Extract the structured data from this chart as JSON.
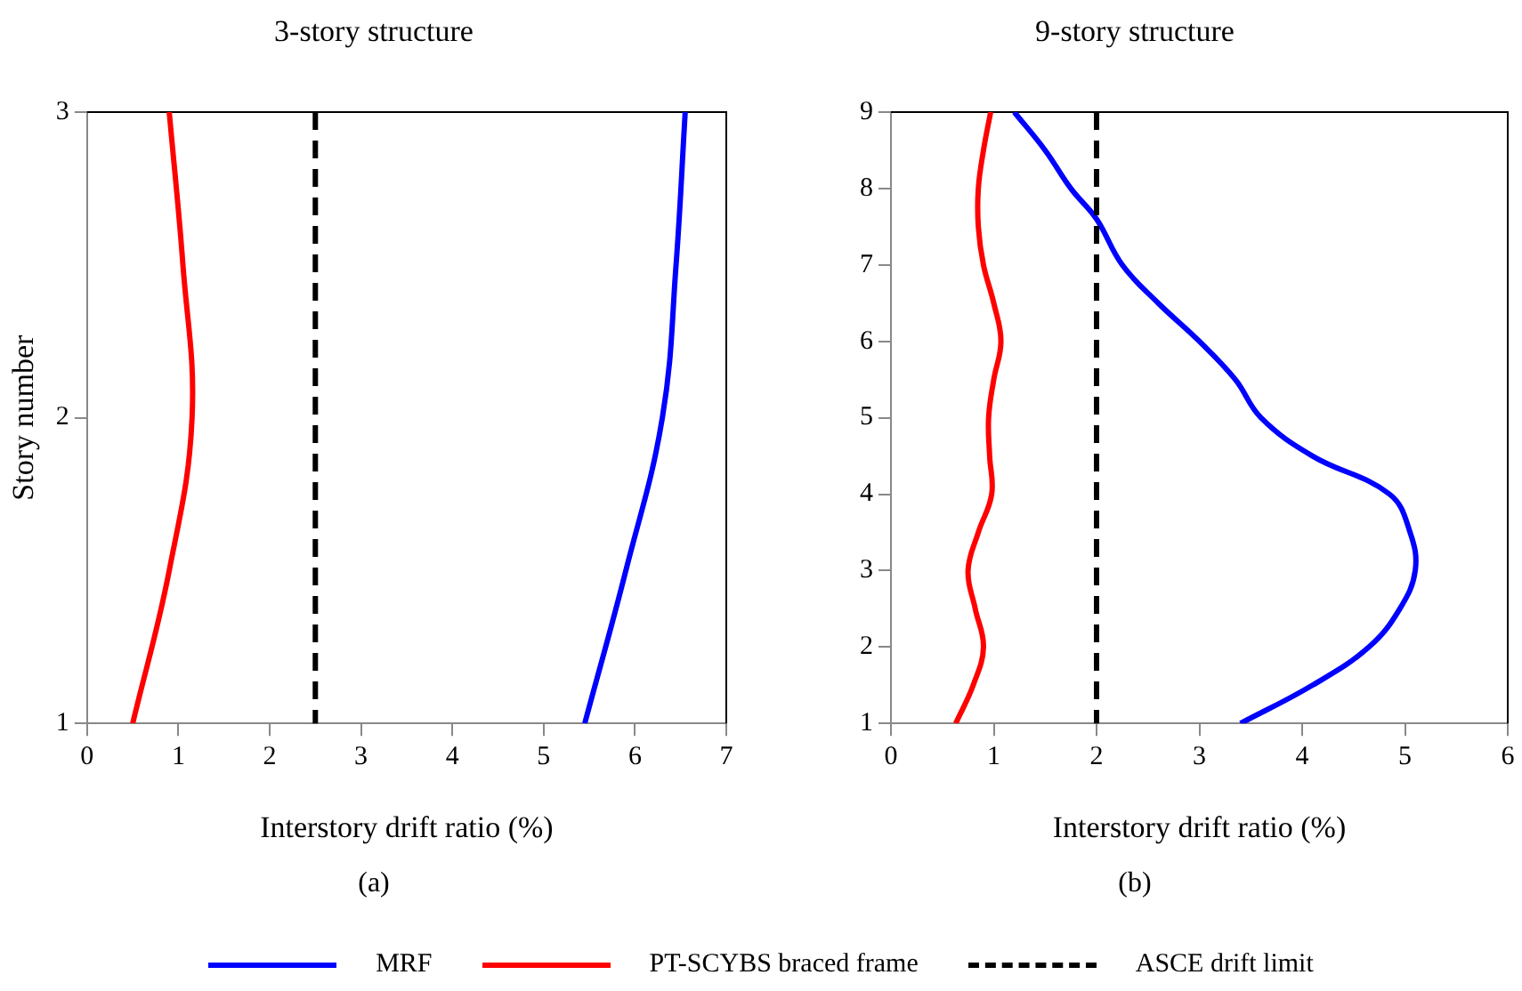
{
  "chart_data": [
    {
      "type": "line",
      "title": "3-story structure",
      "xlabel": "Interstory drift ratio (%)",
      "ylabel": "Story number",
      "xlim": [
        0,
        7
      ],
      "xticks": [
        0,
        1,
        2,
        3,
        4,
        5,
        6,
        7
      ],
      "ylim": [
        1,
        3
      ],
      "yticks": [
        1,
        2,
        3
      ],
      "grid": false,
      "legend": "bottom",
      "line_style": "solid",
      "marker": "none",
      "series": [
        {
          "name": "MRF",
          "color": "#0000ff",
          "x": [
            5.45,
            5.9,
            6.3,
            6.45,
            6.55
          ],
          "values": [
            1,
            1.5,
            2,
            2.5,
            3
          ]
        },
        {
          "name": "PT-SCYBS braced frame",
          "color": "#ff0000",
          "x": [
            0.5,
            0.9,
            1.15,
            1.05,
            0.9
          ],
          "values": [
            1,
            1.5,
            2,
            2.5,
            3
          ]
        }
      ],
      "ref_lines": [
        {
          "axis": "x",
          "value": 2.5,
          "label": "ASCE drift limit",
          "color": "#000000",
          "line_style": "dashed"
        }
      ],
      "annotations": [
        "(a)"
      ]
    },
    {
      "type": "line",
      "title": "9-story structure",
      "xlabel": "Interstory drift ratio (%)",
      "xlim": [
        0,
        6
      ],
      "xticks": [
        0,
        1,
        2,
        3,
        4,
        5,
        6
      ],
      "ylim": [
        1,
        9
      ],
      "yticks": [
        1,
        2,
        3,
        4,
        5,
        6,
        7,
        8,
        9
      ],
      "grid": false,
      "line_style": "solid",
      "marker": "none",
      "series": [
        {
          "color": "#0000ff",
          "x": [
            3.4,
            4.1,
            4.65,
            4.95,
            5.1,
            5.05,
            4.85,
            4.1,
            3.6,
            3.35,
            3.0,
            2.6,
            2.25,
            2.0,
            1.75,
            1.5,
            1.2
          ],
          "values": [
            1,
            1.5,
            2,
            2.5,
            3,
            3.5,
            4,
            4.5,
            5,
            5.5,
            6,
            6.5,
            7,
            7.6,
            8,
            8.5,
            9
          ]
        },
        {
          "color": "#ff0000",
          "x": [
            0.63,
            0.8,
            0.9,
            0.82,
            0.75,
            0.85,
            0.98,
            0.96,
            0.95,
            1.0,
            1.07,
            1.0,
            0.9,
            0.85,
            0.85,
            0.9,
            0.97
          ],
          "values": [
            1,
            1.5,
            2,
            2.5,
            3,
            3.5,
            4,
            4.5,
            5,
            5.5,
            6,
            6.5,
            7,
            7.5,
            8,
            8.5,
            9
          ]
        }
      ],
      "ref_lines": [
        {
          "axis": "x",
          "value": 2,
          "color": "#000000",
          "line_style": "dashed"
        }
      ],
      "annotations": [
        "(b)"
      ]
    }
  ]
}
